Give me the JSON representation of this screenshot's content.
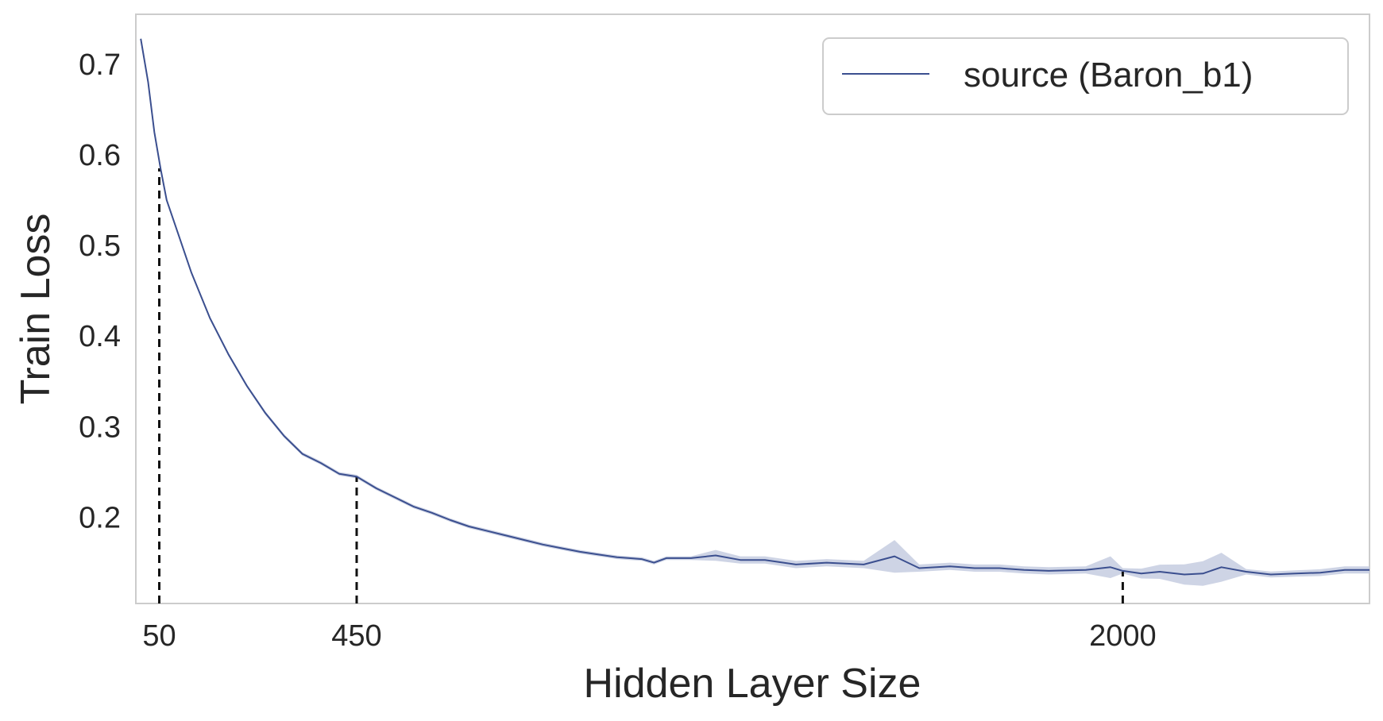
{
  "chart_data": {
    "type": "line",
    "title": "",
    "xlabel": "Hidden Layer Size",
    "ylabel": "Train Loss",
    "xlim": [
      0,
      1
    ],
    "ylim": [
      0.105,
      0.755
    ],
    "grid": false,
    "legend": {
      "position": "top-right",
      "entries": [
        "source (Baron_b1)"
      ]
    },
    "xticks": [
      {
        "label": "50",
        "value": 0.019
      },
      {
        "label": "450",
        "value": 0.179
      },
      {
        "label": "2000",
        "value": 0.8
      }
    ],
    "yticks": [
      0.2,
      0.3,
      0.4,
      0.5,
      0.6,
      0.7
    ],
    "vlines": [
      {
        "x": 0.019,
        "ymax": 0.585
      },
      {
        "x": 0.179,
        "ymax": 0.245
      },
      {
        "x": 0.8,
        "ymax": 0.14
      }
    ],
    "series": [
      {
        "name": "source (Baron_b1)",
        "color": "#3b4f8f",
        "band_color": "#c5cde0",
        "points": [
          [
            0.004,
            0.728
          ],
          [
            0.01,
            0.68
          ],
          [
            0.015,
            0.625
          ],
          [
            0.02,
            0.585
          ],
          [
            0.025,
            0.55
          ],
          [
            0.035,
            0.51
          ],
          [
            0.045,
            0.47
          ],
          [
            0.06,
            0.42
          ],
          [
            0.075,
            0.38
          ],
          [
            0.09,
            0.345
          ],
          [
            0.105,
            0.315
          ],
          [
            0.12,
            0.29
          ],
          [
            0.135,
            0.27
          ],
          [
            0.15,
            0.26
          ],
          [
            0.165,
            0.248
          ],
          [
            0.179,
            0.245
          ],
          [
            0.195,
            0.232
          ],
          [
            0.21,
            0.222
          ],
          [
            0.225,
            0.212
          ],
          [
            0.24,
            0.205
          ],
          [
            0.255,
            0.197
          ],
          [
            0.27,
            0.19
          ],
          [
            0.285,
            0.185
          ],
          [
            0.3,
            0.18
          ],
          [
            0.315,
            0.175
          ],
          [
            0.33,
            0.17
          ],
          [
            0.345,
            0.166
          ],
          [
            0.36,
            0.162
          ],
          [
            0.375,
            0.159
          ],
          [
            0.39,
            0.156
          ],
          [
            0.4,
            0.155
          ],
          [
            0.41,
            0.154
          ],
          [
            0.42,
            0.15
          ],
          [
            0.43,
            0.155
          ],
          [
            0.45,
            0.155
          ],
          [
            0.47,
            0.158
          ],
          [
            0.49,
            0.153
          ],
          [
            0.51,
            0.153
          ],
          [
            0.535,
            0.148
          ],
          [
            0.56,
            0.15
          ],
          [
            0.59,
            0.148
          ],
          [
            0.615,
            0.157
          ],
          [
            0.635,
            0.144
          ],
          [
            0.66,
            0.146
          ],
          [
            0.68,
            0.144
          ],
          [
            0.7,
            0.144
          ],
          [
            0.72,
            0.142
          ],
          [
            0.74,
            0.141
          ],
          [
            0.77,
            0.142
          ],
          [
            0.79,
            0.145
          ],
          [
            0.8,
            0.141
          ],
          [
            0.815,
            0.138
          ],
          [
            0.83,
            0.14
          ],
          [
            0.85,
            0.137
          ],
          [
            0.865,
            0.138
          ],
          [
            0.88,
            0.145
          ],
          [
            0.9,
            0.14
          ],
          [
            0.92,
            0.137
          ],
          [
            0.94,
            0.138
          ],
          [
            0.96,
            0.139
          ],
          [
            0.98,
            0.142
          ],
          [
            1.0,
            0.142
          ]
        ],
        "band": [
          [
            0.45,
            0.005
          ],
          [
            0.47,
            0.006
          ],
          [
            0.49,
            0.004
          ],
          [
            0.59,
            0.004
          ],
          [
            0.615,
            0.018
          ],
          [
            0.635,
            0.004
          ],
          [
            0.77,
            0.004
          ],
          [
            0.79,
            0.012
          ],
          [
            0.8,
            0.003
          ],
          [
            0.88,
            0.016
          ],
          [
            0.9,
            0.003
          ],
          [
            0.98,
            0.004
          ]
        ]
      }
    ]
  }
}
